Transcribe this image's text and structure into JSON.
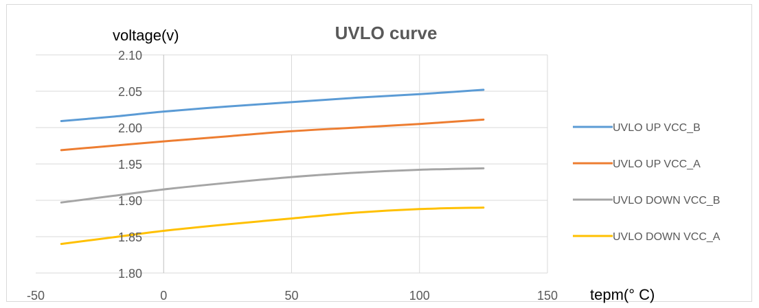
{
  "chart_data": {
    "type": "line",
    "title": "UVLO curve",
    "ylabel": "voltage(v)",
    "xlabel": "tepm(° C)",
    "xlim": [
      -50,
      150
    ],
    "ylim": [
      1.8,
      2.1
    ],
    "x_ticks": [
      "-50",
      "0",
      "50",
      "100",
      "150"
    ],
    "y_ticks": [
      "1.80",
      "1.85",
      "1.90",
      "1.95",
      "2.00",
      "2.05",
      "2.10"
    ],
    "grid": true,
    "legend_position": "right",
    "x": [
      -40,
      -20,
      0,
      25,
      50,
      75,
      100,
      125
    ],
    "series": [
      {
        "name": "UVLO UP VCC_B",
        "color": "#5B9BD5",
        "values": [
          2.009,
          2.015,
          2.022,
          2.029,
          2.035,
          2.041,
          2.046,
          2.052
        ]
      },
      {
        "name": "UVLO UP VCC_A",
        "color": "#ED7D31",
        "values": [
          1.969,
          1.975,
          1.981,
          1.988,
          1.995,
          2.0,
          2.005,
          2.011
        ]
      },
      {
        "name": "UVLO DOWN VCC_B",
        "color": "#A5A5A5",
        "values": [
          1.897,
          1.906,
          1.915,
          1.924,
          1.932,
          1.938,
          1.942,
          1.944
        ]
      },
      {
        "name": "UVLO DOWN VCC_A",
        "color": "#FFC000",
        "values": [
          1.84,
          1.849,
          1.858,
          1.867,
          1.875,
          1.883,
          1.888,
          1.89
        ]
      }
    ]
  }
}
